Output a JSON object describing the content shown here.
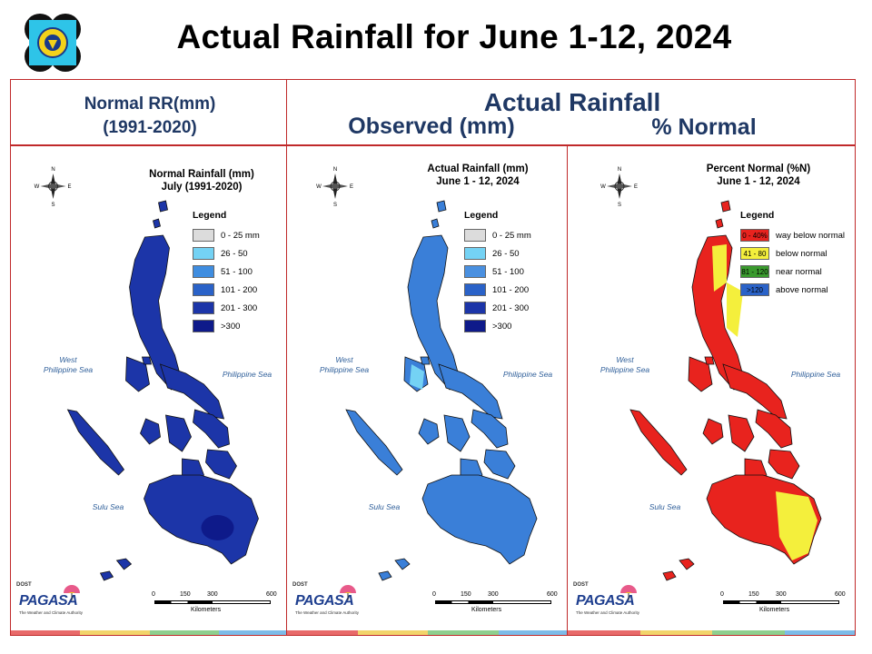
{
  "page": {
    "title": "Actual Rainfall for June 1-12, 2024"
  },
  "header": {
    "normal_line1": "Normal RR(mm)",
    "normal_line2": "(1991-2020)",
    "actual": "Actual Rainfall",
    "observed": "Observed (mm)",
    "percent_normal": "% Normal"
  },
  "panels": [
    {
      "title_line1": "Normal Rainfall (mm)",
      "title_line2": "July (1991-2020)",
      "legend_title": "Legend",
      "legend": [
        {
          "label": "0 - 25 mm",
          "color": "#dcdcdc"
        },
        {
          "label": "26 - 50",
          "color": "#74d2f4"
        },
        {
          "label": "51 - 100",
          "color": "#3f8de0"
        },
        {
          "label": "101 - 200",
          "color": "#2a62c8"
        },
        {
          "label": "201 - 300",
          "color": "#1c35a8"
        },
        {
          "label": ">300",
          "color": "#0e1a8a"
        }
      ],
      "dominant_color": "#1c35a8",
      "sea_west_1": "West",
      "sea_west_2": "Philippine Sea",
      "sea_east": "Philippine Sea",
      "sea_sulu": "Sulu Sea"
    },
    {
      "title_line1": "Actual Rainfall (mm)",
      "title_line2": "June 1 - 12, 2024",
      "legend_title": "Legend",
      "legend": [
        {
          "label": "0 - 25 mm",
          "color": "#dcdcdc"
        },
        {
          "label": "26 - 50",
          "color": "#74d2f4"
        },
        {
          "label": "51 - 100",
          "color": "#4a90e0"
        },
        {
          "label": "101 - 200",
          "color": "#2a62c8"
        },
        {
          "label": "201 - 300",
          "color": "#1c35a8"
        },
        {
          "label": ">300",
          "color": "#0e1a8a"
        }
      ],
      "dominant_color": "#3a7fd8",
      "sea_west_1": "West",
      "sea_west_2": "Philippine Sea",
      "sea_east": "Philippine Sea",
      "sea_sulu": "Sulu Sea"
    },
    {
      "title_line1": "Percent Normal (%N)",
      "title_line2": "June 1 - 12, 2024",
      "legend_title": "Legend",
      "legend": [
        {
          "swatch": "0 - 40%",
          "label": "way below normal",
          "color": "#e8231e"
        },
        {
          "swatch": "41 - 80",
          "label": "below normal",
          "color": "#f4ef3c"
        },
        {
          "swatch": "81 - 120",
          "label": "near normal",
          "color": "#3a9a2e"
        },
        {
          "swatch": ">120",
          "label": "above normal",
          "color": "#2a62c8"
        }
      ],
      "dominant_color": "#e8231e",
      "sea_west_1": "West",
      "sea_west_2": "Philippine Sea",
      "sea_east": "Philippine Sea",
      "sea_sulu": "Sulu Sea"
    }
  ],
  "compass": {
    "n": "N",
    "s": "S",
    "e": "E",
    "w": "W"
  },
  "scale": {
    "ticks": [
      "0",
      "150",
      "300",
      "600"
    ],
    "unit": "Kilometers"
  },
  "brand": {
    "dost": "DOST",
    "name": "PAGASA",
    "tagline": "The Weather and Climate Authority"
  },
  "colors": {
    "frame": "#c0292a",
    "header_text": "#1f3864",
    "stripes": [
      "#e86a6a",
      "#f2d46b",
      "#8ecf8e",
      "#7dbbe8"
    ]
  }
}
